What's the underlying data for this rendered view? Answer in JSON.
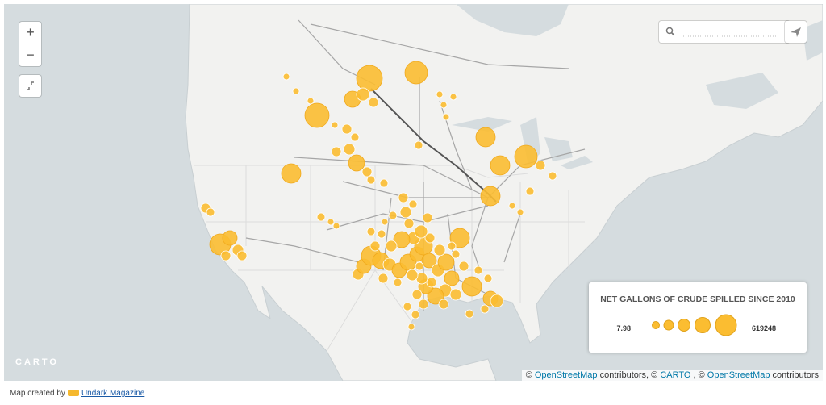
{
  "map_controls": {
    "zoom_in": "+",
    "zoom_out": "−"
  },
  "map": {
    "logo": "CARTO"
  },
  "legend": {
    "title": "NET GALLONS OF CRUDE SPILLED SINCE 2010",
    "min_label": 7.98,
    "max_label": 619248
  },
  "attribution": {
    "segments": [
      {
        "text": "©",
        "link": false
      },
      {
        "text": "OpenStreetMap",
        "link": true
      },
      {
        "text": "contributors, ©",
        "link": false
      },
      {
        "text": "CARTO",
        "link": true
      },
      {
        "text": ", ©",
        "link": false
      },
      {
        "text": "OpenStreetMap",
        "link": true
      },
      {
        "text": "contributors",
        "link": false
      }
    ]
  },
  "footer": {
    "prefix": "Map created by",
    "link": "Undark Magazine"
  }
}
